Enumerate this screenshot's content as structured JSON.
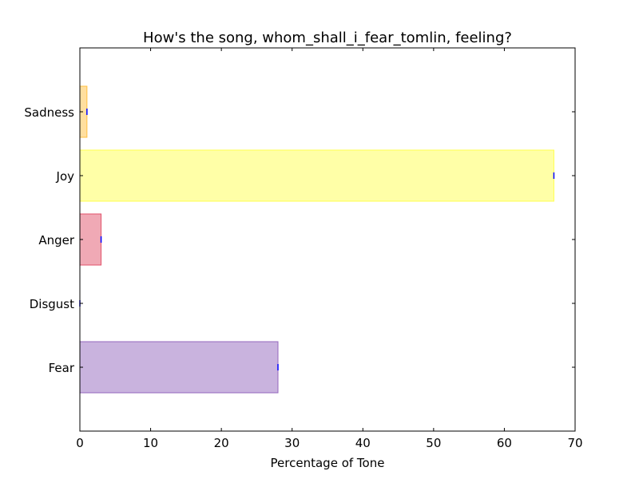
{
  "chart_data": {
    "type": "bar",
    "orientation": "horizontal",
    "title": "How's the song, whom_shall_i_fear_tomlin, feeling?",
    "xlabel": "Percentage of Tone",
    "ylabel": "",
    "xlim": [
      0,
      70
    ],
    "xticks": [
      0,
      10,
      20,
      30,
      40,
      50,
      60,
      70
    ],
    "categories": [
      "Fear",
      "Disgust",
      "Anger",
      "Joy",
      "Sadness"
    ],
    "values": [
      28,
      0,
      3,
      67,
      1
    ],
    "colors": [
      "#9467bd",
      "#2ca02c",
      "#e2536b",
      "#ffff4f",
      "#ffbf40"
    ],
    "error_marker_color": "#0000ff",
    "grid": false,
    "legend": "none"
  }
}
